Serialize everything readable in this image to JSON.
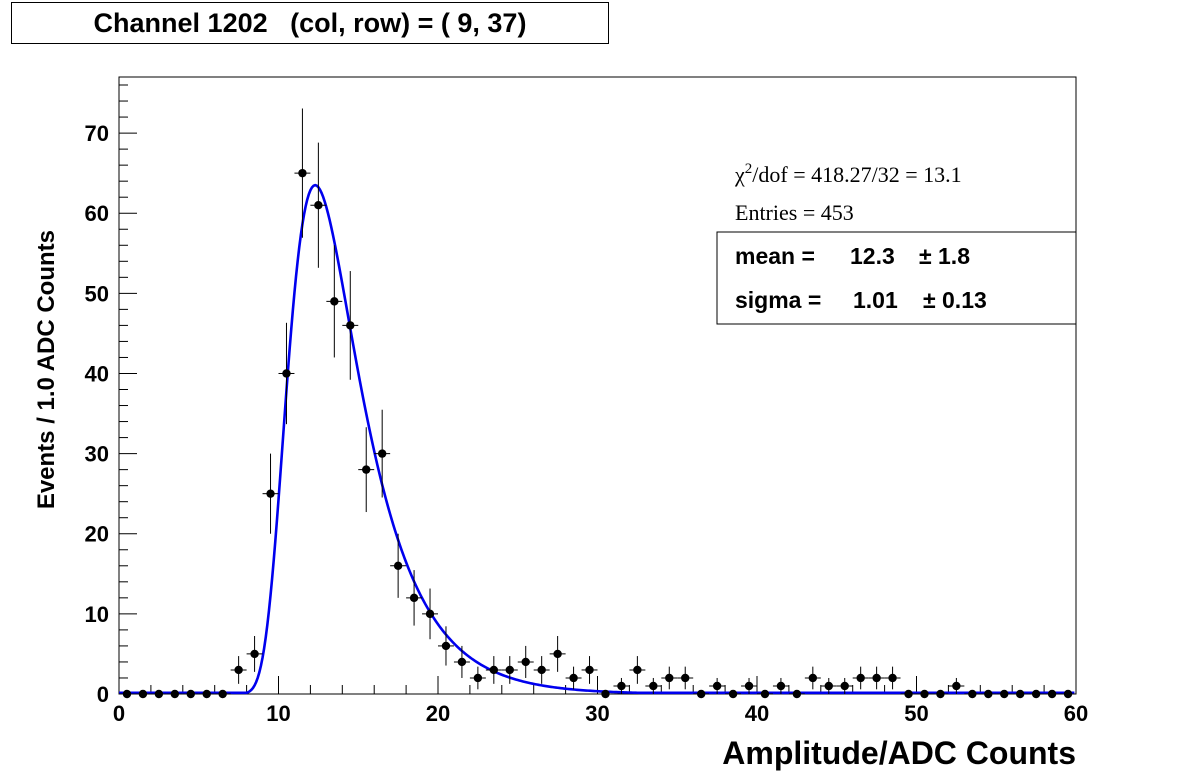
{
  "title": {
    "prefix": "Channel 1202",
    "suffix": "(col, row) = ( 9, 37)"
  },
  "stats": {
    "chi2_symbol": "χ",
    "chi2_exponent": "2",
    "chi2_rest": "/dof = 418.27/32 = 13.1",
    "entries": "Entries = 453"
  },
  "fit_box": {
    "mean_label": "mean =",
    "mean_value": "12.3",
    "mean_error": "± 1.8",
    "sigma_label": "sigma =",
    "sigma_value": "1.01",
    "sigma_error": "± 0.13"
  },
  "colors": {
    "fit_curve": "#0000ee",
    "points": "#000000",
    "frame": "#000000"
  },
  "chart_data": {
    "type": "scatter",
    "title": "Channel 1202   (col, row) = ( 9, 37)",
    "xlabel": "Amplitude/ADC Counts",
    "ylabel": "Events / 1.0 ADC Counts",
    "xlim": [
      0,
      60
    ],
    "ylim": [
      0,
      77
    ],
    "x_ticks": [
      0,
      10,
      20,
      30,
      40,
      50,
      60
    ],
    "y_ticks": [
      0,
      10,
      20,
      30,
      40,
      50,
      60,
      70
    ],
    "grid": false,
    "bin_width": 1.0,
    "series": [
      {
        "kind": "data",
        "x": [
          0.5,
          1.5,
          2.5,
          3.5,
          4.5,
          5.5,
          6.5,
          7.5,
          8.5,
          9.5,
          10.5,
          11.5,
          12.5,
          13.5,
          14.5,
          15.5,
          16.5,
          17.5,
          18.5,
          19.5,
          20.5,
          21.5,
          22.5,
          23.5,
          24.5,
          25.5,
          26.5,
          27.5,
          28.5,
          29.5,
          30.5,
          31.5,
          32.5,
          33.5,
          34.5,
          35.5,
          36.5,
          37.5,
          38.5,
          39.5,
          40.5,
          41.5,
          42.5,
          43.5,
          44.5,
          45.5,
          46.5,
          47.5,
          48.5,
          49.5,
          50.5,
          51.5,
          52.5,
          53.5,
          54.5,
          55.5,
          56.5,
          57.5,
          58.5,
          59.5
        ],
        "y": [
          0,
          0,
          0,
          0,
          0,
          0,
          0,
          3,
          5,
          25,
          40,
          65,
          61,
          49,
          46,
          28,
          30,
          16,
          12,
          10,
          6,
          4,
          2,
          3,
          3,
          4,
          3,
          5,
          2,
          3,
          0,
          1,
          3,
          1,
          2,
          2,
          0,
          1,
          0,
          1,
          0,
          1,
          0,
          2,
          1,
          1,
          2,
          2,
          2,
          0,
          0,
          0,
          1,
          0,
          0,
          0,
          0,
          0,
          0,
          0
        ],
        "y_errors": "poisson"
      },
      {
        "kind": "fit",
        "function": "Landau-like peak",
        "peak_x": 12.3,
        "peak_y": 63.5,
        "sigma": 1.01
      }
    ]
  }
}
